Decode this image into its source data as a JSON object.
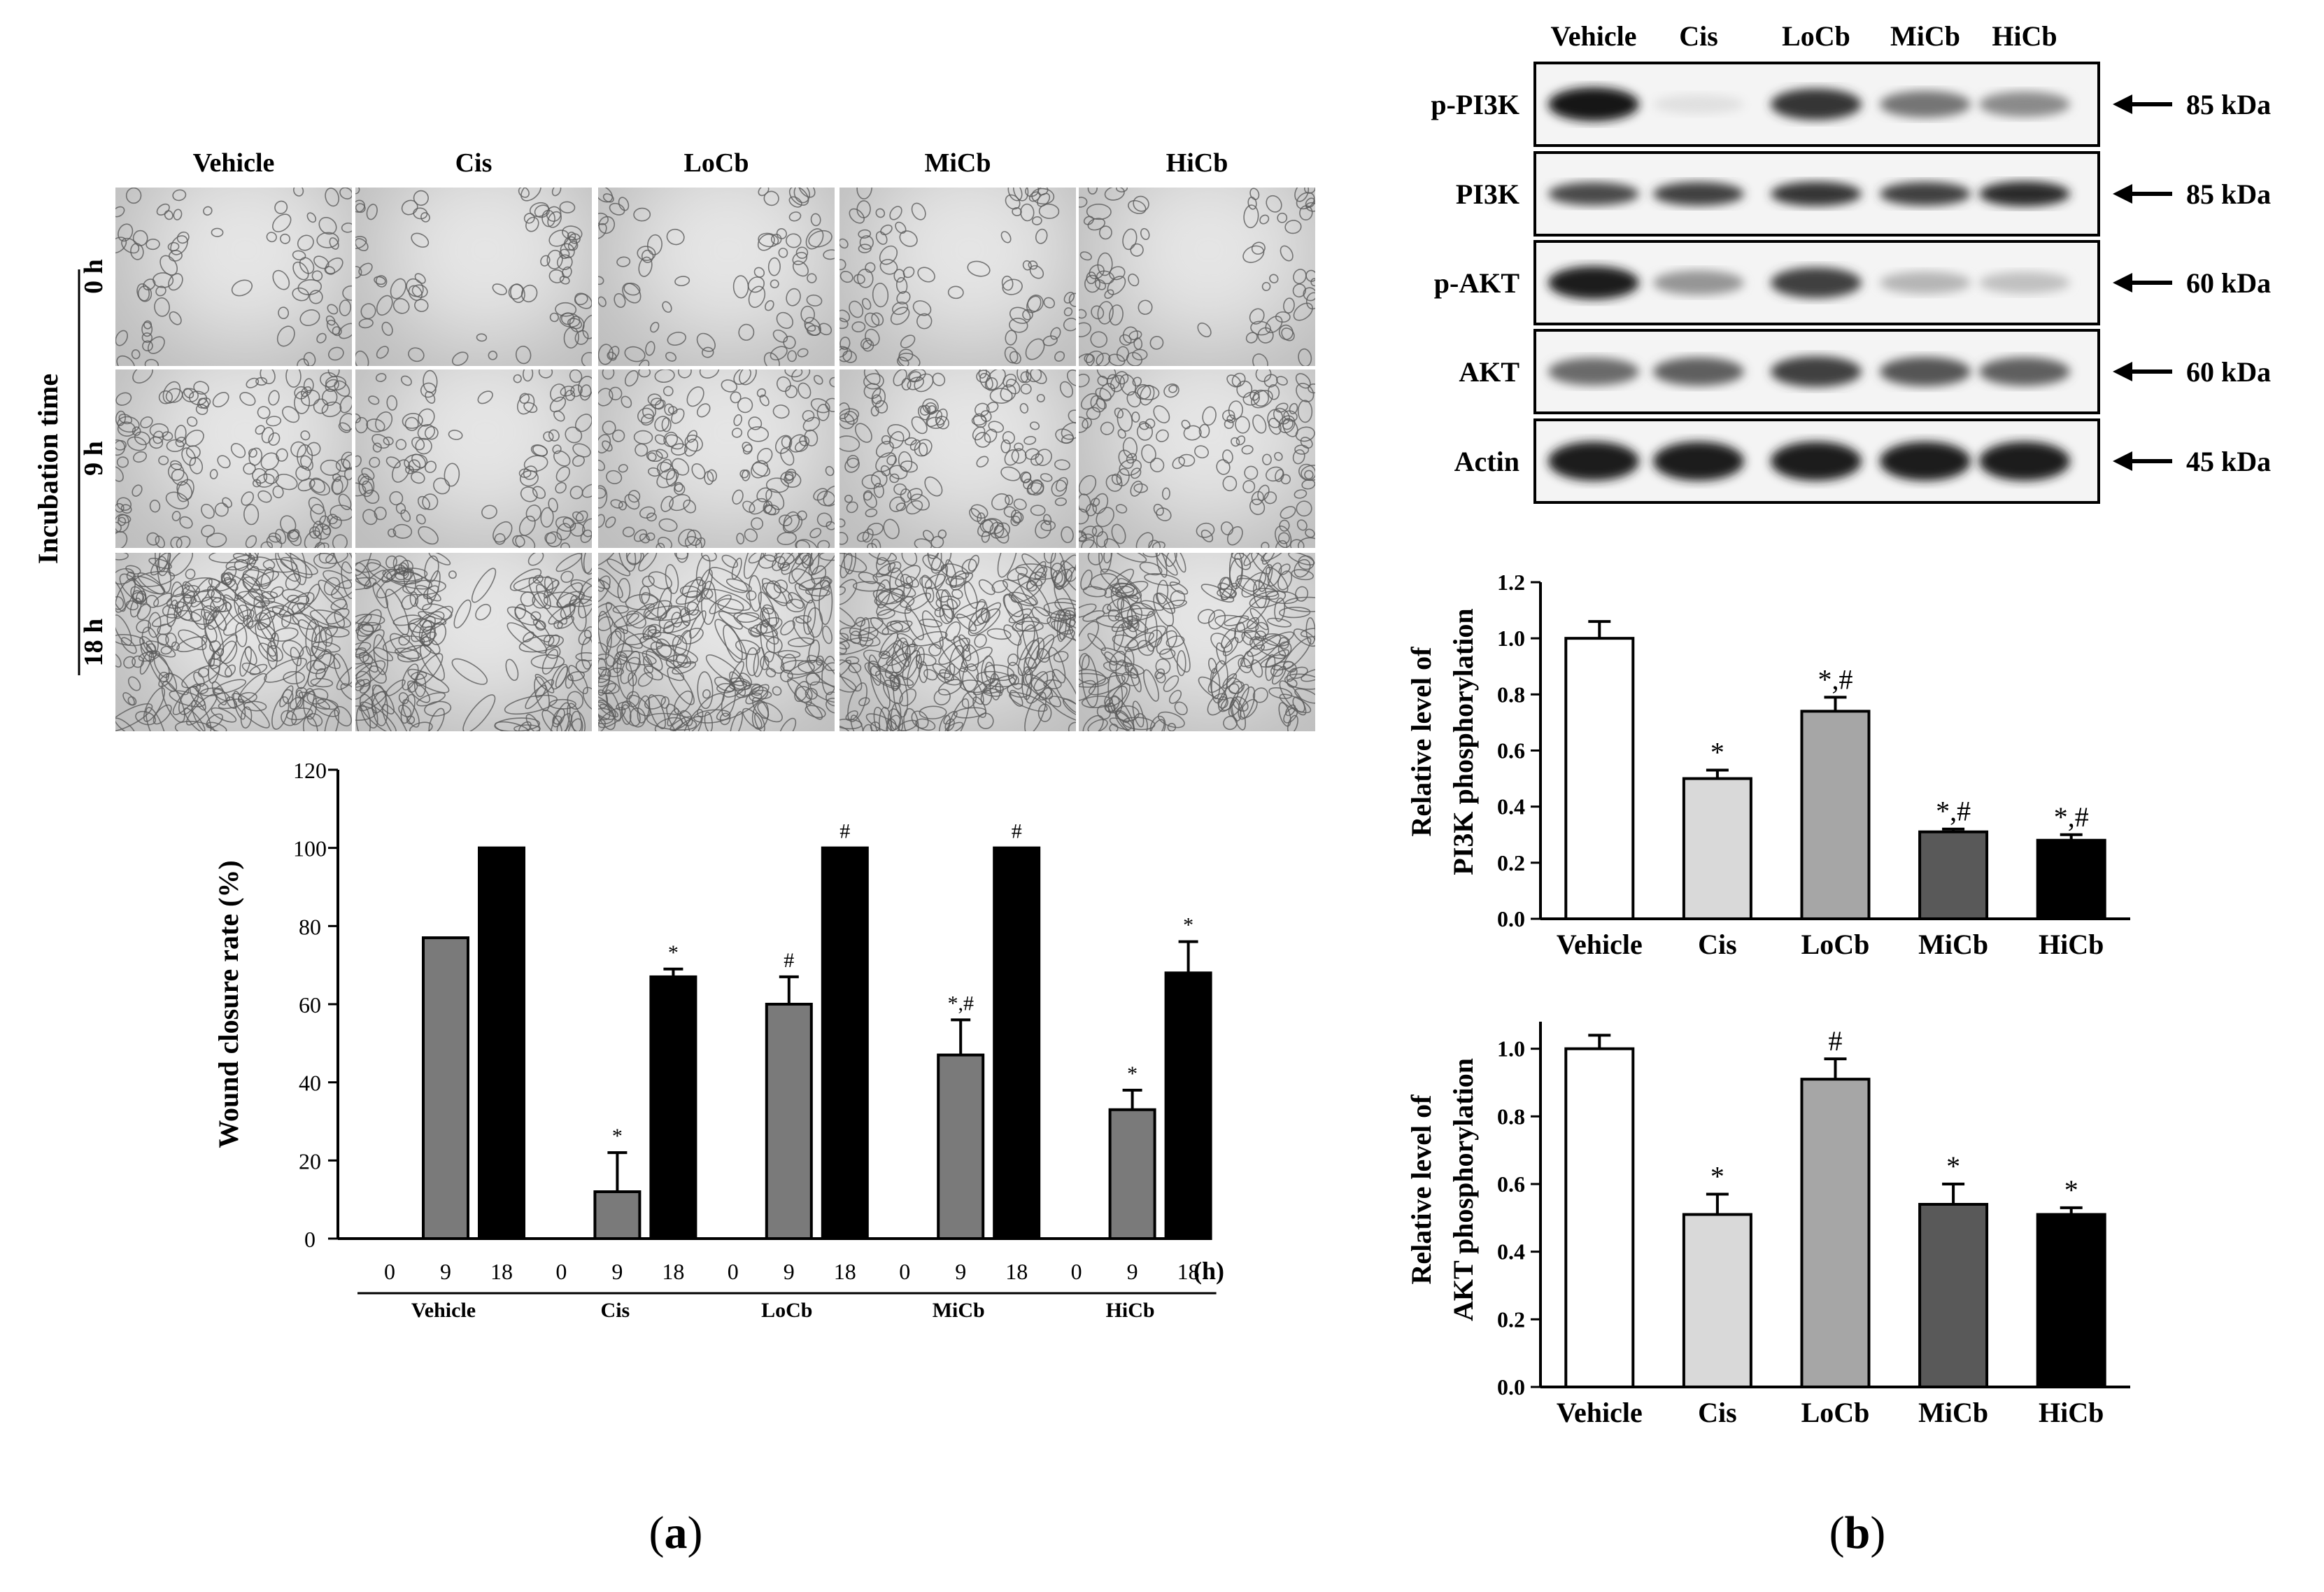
{
  "panel_a": {
    "conditions": [
      "Vehicle",
      "Cis",
      "LoCb",
      "MiCb",
      "HiCb"
    ],
    "incubation_axis_label": "Incubation time",
    "timepoints": [
      "0 h",
      "9 h",
      "18 h"
    ],
    "caption": [
      "(",
      "a",
      ")"
    ]
  },
  "panel_b": {
    "blot": {
      "conditions": [
        "Vehicle",
        "Cis",
        "LoCb",
        "MiCb",
        "HiCb"
      ],
      "rows": [
        {
          "label": "p-PI3K",
          "size": "85 kDa",
          "intensity": [
            1.0,
            0.05,
            0.85,
            0.55,
            0.45
          ]
        },
        {
          "label": "PI3K",
          "size": "85 kDa",
          "intensity": [
            0.75,
            0.8,
            0.85,
            0.8,
            0.9
          ]
        },
        {
          "label": "p-AKT",
          "size": "60 kDa",
          "intensity": [
            0.95,
            0.4,
            0.8,
            0.25,
            0.2
          ]
        },
        {
          "label": "AKT",
          "size": "60 kDa",
          "intensity": [
            0.6,
            0.65,
            0.8,
            0.7,
            0.65
          ]
        },
        {
          "label": "Actin",
          "size": "45 kDa",
          "intensity": [
            0.95,
            0.95,
            0.95,
            0.95,
            0.95
          ]
        }
      ]
    },
    "caption": [
      "(",
      "b",
      ")"
    ]
  },
  "chart_data": [
    {
      "type": "bar",
      "id": "wound-closure",
      "ylabel": "Wound closure rate (%)",
      "ylim": [
        0,
        120
      ],
      "yticks": [
        0,
        20,
        40,
        60,
        80,
        100,
        120
      ],
      "groups": [
        "Vehicle",
        "Cis",
        "LoCb",
        "MiCb",
        "HiCb"
      ],
      "x_tick_labels": [
        "0",
        "9",
        "18"
      ],
      "x_unit": "(h)",
      "series": [
        {
          "time": "0",
          "values": [
            0,
            0,
            0,
            0,
            0
          ],
          "errors": [
            0,
            0,
            0,
            0,
            0
          ],
          "color": "#ffffff",
          "annotations": [
            "",
            "",
            "",
            "",
            ""
          ]
        },
        {
          "time": "9",
          "values": [
            77,
            12,
            60,
            47,
            33
          ],
          "errors": [
            0,
            10,
            7,
            9,
            5
          ],
          "color": "#7a7a7a",
          "annotations": [
            "",
            "*",
            "#",
            "*,#",
            "*"
          ]
        },
        {
          "time": "18",
          "values": [
            100,
            67,
            100,
            100,
            68
          ],
          "errors": [
            0,
            2,
            0,
            0,
            8
          ],
          "color": "#000000",
          "annotations": [
            "",
            "*",
            "#",
            "#",
            "*"
          ]
        }
      ],
      "grid": false
    },
    {
      "type": "bar",
      "id": "pi3k-phosphorylation",
      "ylabel": [
        "Relative level of",
        "PI3K phosphorylation"
      ],
      "ylim": [
        0,
        1.2
      ],
      "yticks": [
        "0.0",
        "0.2",
        "0.4",
        "0.6",
        "0.8",
        "1.0",
        "1.2"
      ],
      "categories": [
        "Vehicle",
        "Cis",
        "LoCb",
        "MiCb",
        "HiCb"
      ],
      "values": [
        1.0,
        0.5,
        0.74,
        0.31,
        0.28
      ],
      "errors": [
        0.06,
        0.03,
        0.05,
        0.01,
        0.02
      ],
      "colors": [
        "#ffffff",
        "#d9d9d9",
        "#a6a6a6",
        "#595959",
        "#000000"
      ],
      "annotations": [
        "",
        "*",
        "*,#",
        "*,#",
        "*,#"
      ],
      "grid": false
    },
    {
      "type": "bar",
      "id": "akt-phosphorylation",
      "ylabel": [
        "Relative level of",
        "AKT phosphorylation"
      ],
      "ylim": [
        0,
        1.08
      ],
      "yticks": [
        "0.0",
        "0.2",
        "0.4",
        "0.6",
        "0.8",
        "1.0"
      ],
      "categories": [
        "Vehicle",
        "Cis",
        "LoCb",
        "MiCb",
        "HiCb"
      ],
      "values": [
        1.0,
        0.51,
        0.91,
        0.54,
        0.51
      ],
      "errors": [
        0.04,
        0.06,
        0.06,
        0.06,
        0.02
      ],
      "colors": [
        "#ffffff",
        "#d9d9d9",
        "#a6a6a6",
        "#595959",
        "#000000"
      ],
      "annotations": [
        "",
        "*",
        "#",
        "*",
        "*"
      ],
      "grid": false
    }
  ]
}
